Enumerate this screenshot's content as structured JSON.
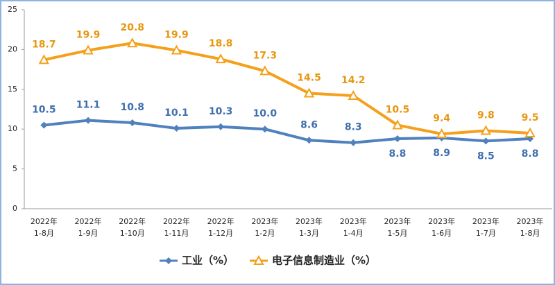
{
  "chart_data": {
    "type": "line",
    "categories": [
      [
        "2022年",
        "1-8月"
      ],
      [
        "2022年",
        "1-9月"
      ],
      [
        "2022年",
        "1-10月"
      ],
      [
        "2022年",
        "1-11月"
      ],
      [
        "2022年",
        "1-12月"
      ],
      [
        "2023年",
        "1-2月"
      ],
      [
        "2023年",
        "1-3月"
      ],
      [
        "2023年",
        "1-4月"
      ],
      [
        "2023年",
        "1-5月"
      ],
      [
        "2023年",
        "1-6月"
      ],
      [
        "2023年",
        "1-7月"
      ],
      [
        "2023年",
        "1-8月"
      ]
    ],
    "series": [
      {
        "name": "工业（%）",
        "color": "#4f81bd",
        "marker": "diamond",
        "values": [
          10.5,
          11.1,
          10.8,
          10.1,
          10.3,
          10.0,
          8.6,
          8.3,
          8.8,
          8.9,
          8.5,
          8.8
        ],
        "value_labels": [
          "10.5",
          "11.1",
          "10.8",
          "10.1",
          "10.3",
          "10.0",
          "8.6",
          "8.3",
          "8.8",
          "8.9",
          "8.5",
          "8.8"
        ]
      },
      {
        "name": "电子信息制造业（%）",
        "color": "#f5a01a",
        "marker": "triangle",
        "values": [
          18.7,
          19.9,
          20.8,
          19.9,
          18.8,
          17.3,
          14.5,
          14.2,
          10.5,
          9.4,
          9.8,
          9.5
        ]
      }
    ],
    "ylim": [
      0,
      25
    ],
    "yticks": [
      0,
      5,
      10,
      15,
      20,
      25
    ],
    "grid": false
  }
}
